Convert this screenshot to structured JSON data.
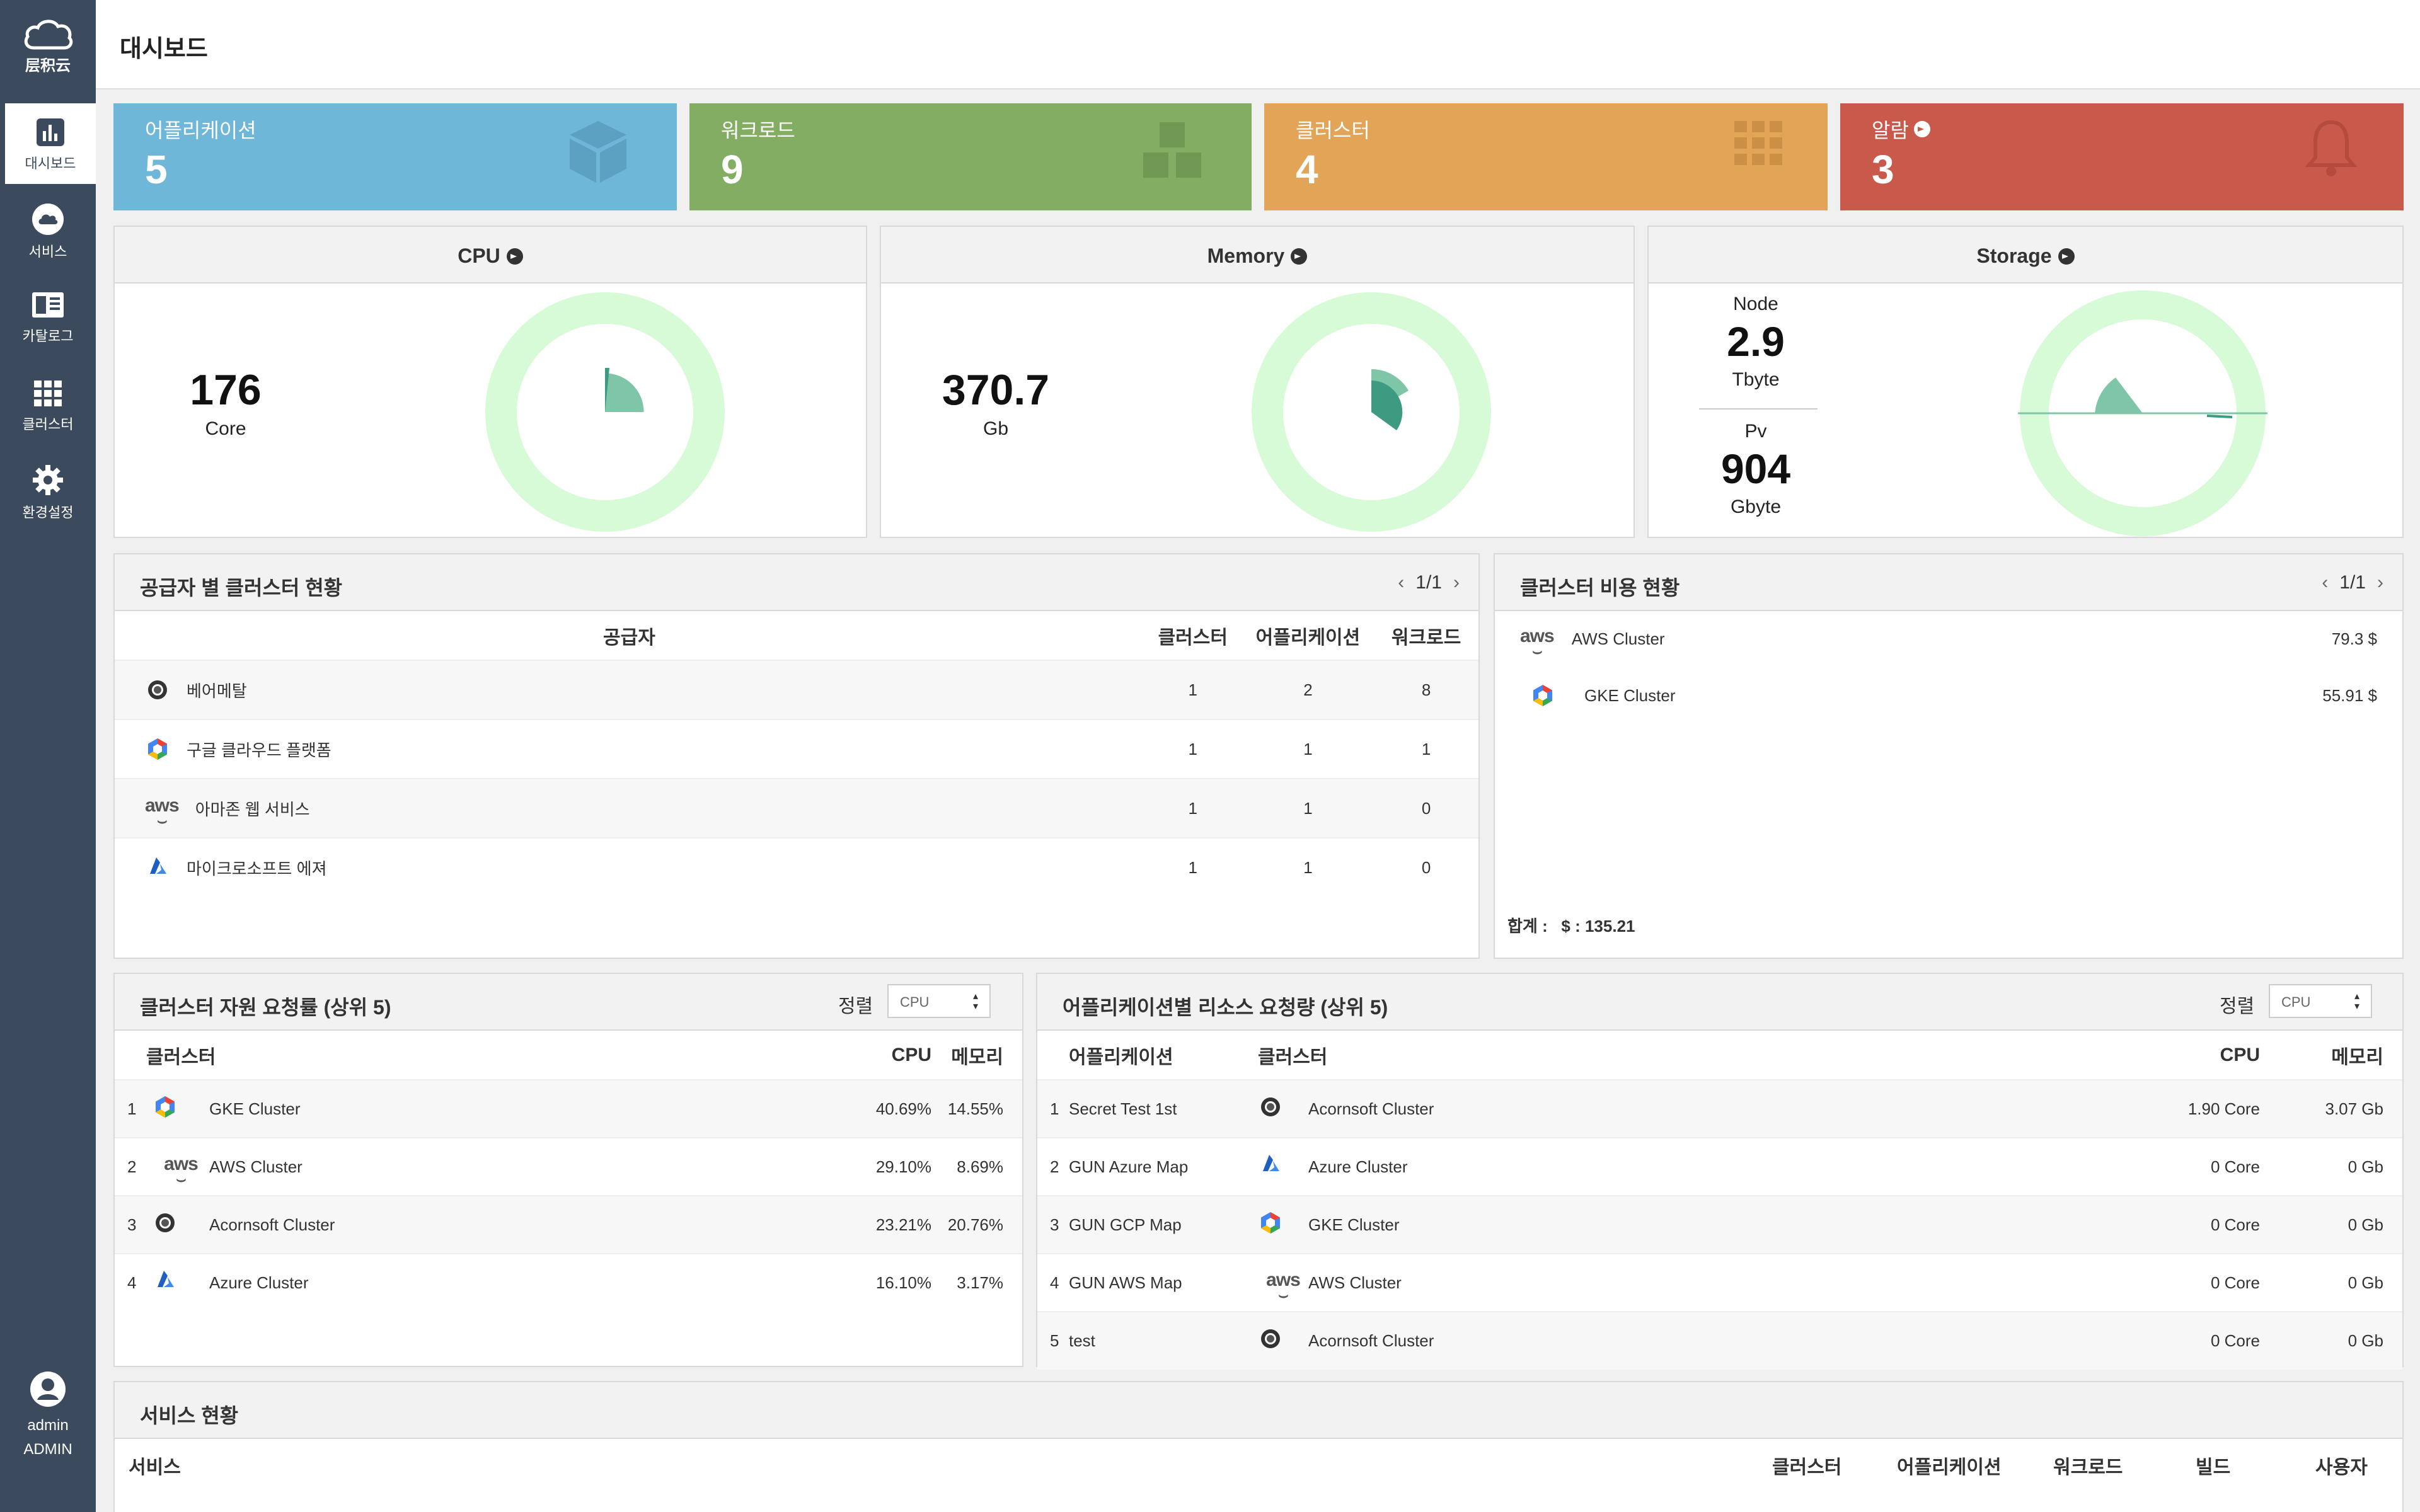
{
  "app": {
    "logo_text": "层积云"
  },
  "sidebar": {
    "items": [
      {
        "label": "대시보드",
        "icon": "bar-chart-icon",
        "active": true
      },
      {
        "label": "서비스",
        "icon": "cloud-icon"
      },
      {
        "label": "카탈로그",
        "icon": "book-icon"
      },
      {
        "label": "클러스터",
        "icon": "grid-icon"
      },
      {
        "label": "환경설정",
        "icon": "gear-icon"
      }
    ],
    "user": {
      "name": "admin",
      "role": "ADMIN"
    }
  },
  "header": {
    "title": "대시보드"
  },
  "stats": [
    {
      "label": "어플리케이션",
      "value": "5",
      "color": "#6fb7d9",
      "icon": "cube-icon"
    },
    {
      "label": "워크로드",
      "value": "9",
      "color": "#83ad63",
      "icon": "cubes-icon"
    },
    {
      "label": "클러스터",
      "value": "4",
      "color": "#e2a457",
      "icon": "grid-icon"
    },
    {
      "label": "알람",
      "value": "3",
      "color": "#c95a4b",
      "icon": "bell-icon"
    }
  ],
  "gauges": {
    "cpu": {
      "title": "CPU",
      "value": "176",
      "unit": "Core"
    },
    "memory": {
      "title": "Memory",
      "value": "370.7",
      "unit": "Gb"
    },
    "storage": {
      "title": "Storage",
      "node_label": "Node",
      "node_value": "2.9",
      "node_unit": "Tbyte",
      "pv_label": "Pv",
      "pv_value": "904",
      "pv_unit": "Gbyte"
    }
  },
  "provider_panel": {
    "title": "공급자 별 클러스터 현황",
    "page": "1/1",
    "columns": [
      "공급자",
      "클러스터",
      "어플리케이션",
      "워크로드"
    ],
    "rows": [
      {
        "name": "베어메탈",
        "icon": "baremetal-icon",
        "clusters": "1",
        "apps": "2",
        "workloads": "8"
      },
      {
        "name": "구글 클라우드 플랫폼",
        "icon": "gcp-icon",
        "clusters": "1",
        "apps": "1",
        "workloads": "1"
      },
      {
        "name": "아마존 웹 서비스",
        "icon": "aws-icon",
        "clusters": "1",
        "apps": "1",
        "workloads": "0"
      },
      {
        "name": "마이크로소프트 에져",
        "icon": "azure-icon",
        "clusters": "1",
        "apps": "1",
        "workloads": "0"
      }
    ]
  },
  "cost_panel": {
    "title": "클러스터 비용 현황",
    "page": "1/1",
    "rows": [
      {
        "name": "AWS Cluster",
        "icon": "aws-icon",
        "cost": "79.3 $"
      },
      {
        "name": "GKE Cluster",
        "icon": "gcp-icon",
        "cost": "55.91 $"
      }
    ],
    "total_label": "합계 :",
    "total_value": "$ : 135.21"
  },
  "cluster_usage": {
    "title": "클러스터 자원 요청률 (상위 5)",
    "sort_label": "정렬",
    "sort_value": "CPU",
    "columns": [
      "클러스터",
      "CPU",
      "메모리"
    ],
    "rows": [
      {
        "rank": "1",
        "icon": "gcp-icon",
        "name": "GKE Cluster",
        "cpu": "40.69%",
        "mem": "14.55%"
      },
      {
        "rank": "2",
        "icon": "aws-icon",
        "name": "AWS Cluster",
        "cpu": "29.10%",
        "mem": "8.69%"
      },
      {
        "rank": "3",
        "icon": "baremetal-icon",
        "name": "Acornsoft Cluster",
        "cpu": "23.21%",
        "mem": "20.76%"
      },
      {
        "rank": "4",
        "icon": "azure-icon",
        "name": "Azure Cluster",
        "cpu": "16.10%",
        "mem": "3.17%"
      }
    ]
  },
  "app_usage": {
    "title": "어플리케이션별 리소스 요청량 (상위 5)",
    "sort_label": "정렬",
    "sort_value": "CPU",
    "columns": [
      "어플리케이션",
      "클러스터",
      "CPU",
      "메모리"
    ],
    "rows": [
      {
        "rank": "1",
        "app": "Secret Test 1st",
        "icon": "baremetal-icon",
        "cluster": "Acornsoft Cluster",
        "cpu": "1.90 Core",
        "mem": "3.07 Gb"
      },
      {
        "rank": "2",
        "app": "GUN Azure Map",
        "icon": "azure-icon",
        "cluster": "Azure Cluster",
        "cpu": "0 Core",
        "mem": "0 Gb"
      },
      {
        "rank": "3",
        "app": "GUN GCP Map",
        "icon": "gcp-icon",
        "cluster": "GKE Cluster",
        "cpu": "0 Core",
        "mem": "0 Gb"
      },
      {
        "rank": "4",
        "app": "GUN AWS Map",
        "icon": "aws-icon",
        "cluster": "AWS Cluster",
        "cpu": "0 Core",
        "mem": "0 Gb"
      },
      {
        "rank": "5",
        "app": "test",
        "icon": "baremetal-icon",
        "cluster": "Acornsoft Cluster",
        "cpu": "0 Core",
        "mem": "0 Gb"
      }
    ]
  },
  "service_panel": {
    "title": "서비스 현황",
    "columns": [
      "서비스",
      "클러스터",
      "어플리케이션",
      "워크로드",
      "빌드",
      "사용자"
    ]
  },
  "colors": {
    "sidebar": "#3b4a5c",
    "ring": "#d6fbd6",
    "wedge_light": "#7fc5a8",
    "wedge_dark": "#3e9a80"
  }
}
